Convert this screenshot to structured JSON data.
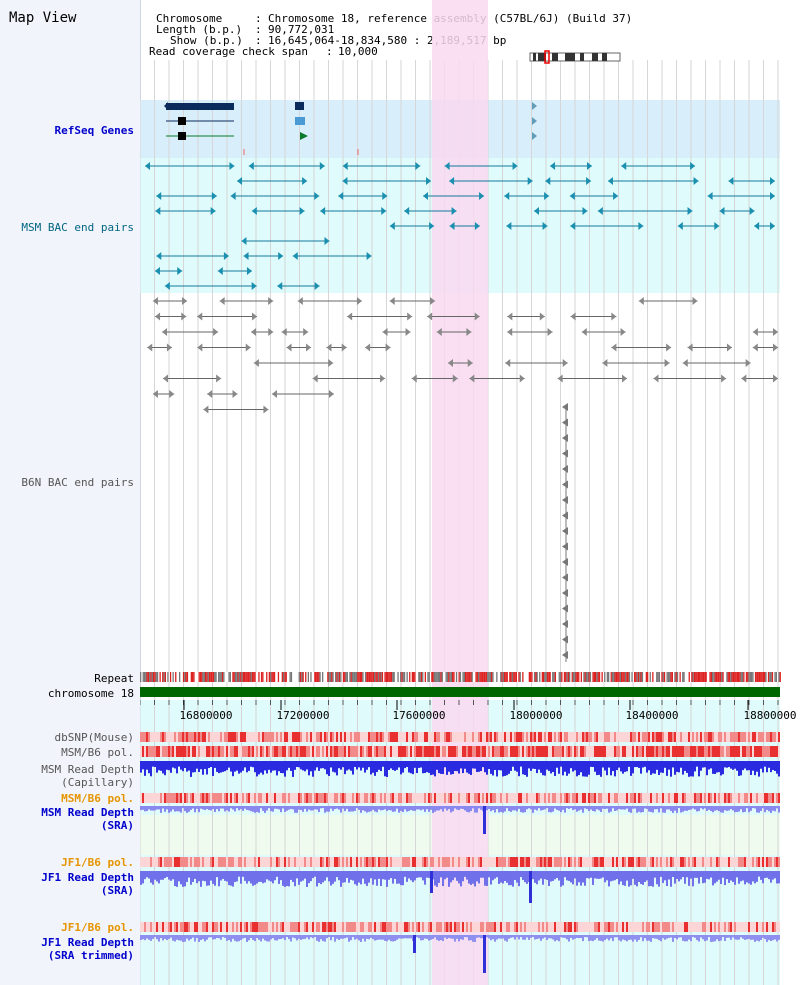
{
  "title": "Map View",
  "header": {
    "chromosome_label": "Chromosome",
    "chromosome_value": "Chromosome 18, reference assembly (C57BL/6J) (Build 37)",
    "length_label": "Length (b.p.)",
    "length_value": "90,772,031",
    "show_label": "Show (b.p.)",
    "show_value": "16,645,064-18,834,580 : 2,189,517 bp",
    "coverage_label": "Read coverage check span",
    "coverage_value": "10,000"
  },
  "tracks": {
    "refseq": "RefSeq Genes",
    "msm_bac": "MSM BAC end pairs",
    "b6n_bac": "B6N BAC end pairs",
    "repeat": "Repeat",
    "chromosome": "chromosome 18",
    "dbsnp": "dbSNP(Mouse)",
    "msm_b6_pol": "MSM/B6 pol.",
    "msm_depth_cap_1": "MSM Read Depth",
    "msm_depth_cap_2": "(Capillary)",
    "msm_b6_pol_2": "MSM/B6 pol.",
    "msm_depth_sra_1": "MSM Read Depth",
    "msm_depth_sra_2": "(SRA)",
    "jf1_b6_pol": "JF1/B6 pol.",
    "jf1_depth_sra_1": "JF1 Read Depth",
    "jf1_depth_sra_2": "(SRA)",
    "jf1_b6_pol_2": "JF1/B6 pol.",
    "jf1_depth_trim_1": "JF1 Read Depth",
    "jf1_depth_trim_2": "(SRA trimmed)"
  },
  "axis": {
    "ticks": [
      "16800000",
      "17200000",
      "17600000",
      "18000000",
      "18400000",
      "18800000"
    ]
  },
  "colors": {
    "blue_label": "#0000cc",
    "orange_label": "#e69500",
    "teal_label": "#006680",
    "gray_label": "#555555",
    "refseq_bg": "#d8eefa",
    "msm_bg": "#e0fbfb",
    "highlight": "#f9d9f1",
    "chrom_bar": "#006600"
  }
}
